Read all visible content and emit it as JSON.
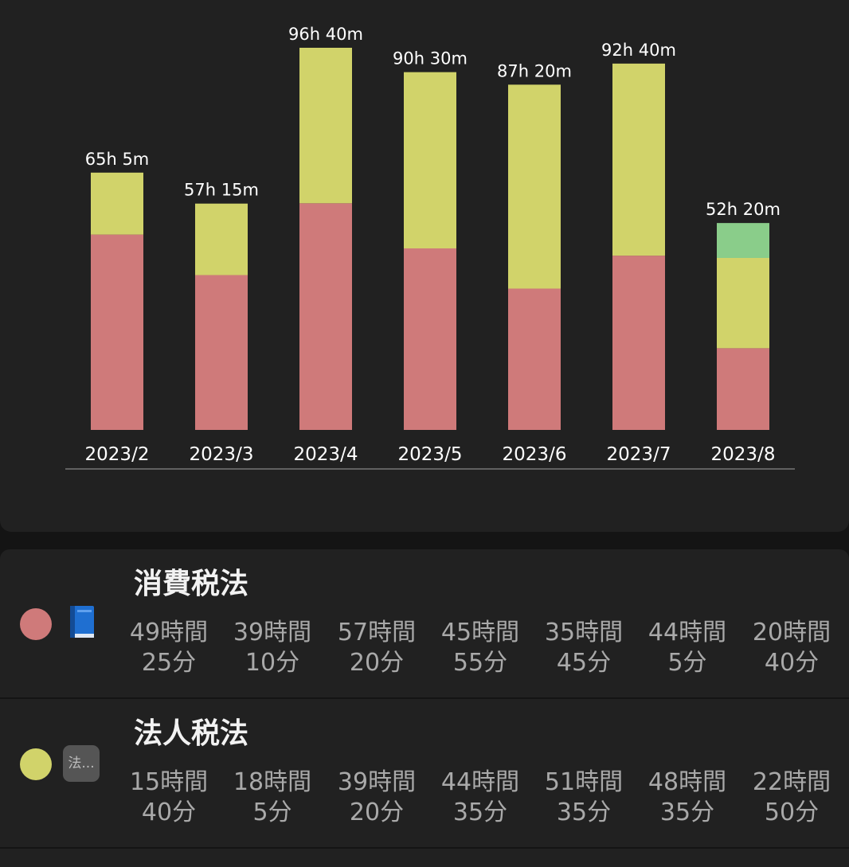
{
  "colors": {
    "subject_0": "#cf7a7a",
    "subject_1": "#d1d36a",
    "subject_2": "#8acd8a",
    "axis": "#777777",
    "label": "#ffffff"
  },
  "chart_data": {
    "type": "bar",
    "stacked": true,
    "categories": [
      "2023/2",
      "2023/3",
      "2023/4",
      "2023/5",
      "2023/6",
      "2023/7",
      "2023/8"
    ],
    "totals": [
      "65h  5m",
      "57h  15m",
      "96h  40m",
      "90h  30m",
      "87h  20m",
      "92h  40m",
      "52h  20m"
    ],
    "total_hours": [
      65.083,
      57.25,
      96.667,
      90.5,
      87.333,
      92.667,
      52.333
    ],
    "series": [
      {
        "name": "消費税法",
        "color": "#cf7a7a",
        "values": [
          49.417,
          39.167,
          57.333,
          45.917,
          35.75,
          44.083,
          20.667
        ]
      },
      {
        "name": "法人税法",
        "color": "#d1d36a",
        "values": [
          15.667,
          18.083,
          39.333,
          44.583,
          51.583,
          48.583,
          22.833
        ]
      },
      {
        "color": "#8acd8a",
        "values": [
          0,
          0,
          0,
          0,
          0,
          0,
          8.833
        ]
      }
    ],
    "ylim": [
      0,
      100
    ],
    "grid": false,
    "legend": "none"
  },
  "subjects": [
    {
      "name": "消費税法",
      "icon": "book-icon",
      "months": [
        {
          "h": "49時間",
          "m": "25分"
        },
        {
          "h": "39時間",
          "m": "10分"
        },
        {
          "h": "57時間",
          "m": "20分"
        },
        {
          "h": "45時間",
          "m": "55分"
        },
        {
          "h": "35時間",
          "m": "45分"
        },
        {
          "h": "44時間",
          "m": "5分"
        },
        {
          "h": "20時間",
          "m": "40分"
        }
      ]
    },
    {
      "name": "法人税法",
      "icon_text": "法...",
      "months": [
        {
          "h": "15時間",
          "m": "40分"
        },
        {
          "h": "18時間",
          "m": "5分"
        },
        {
          "h": "39時間",
          "m": "20分"
        },
        {
          "h": "44時間",
          "m": "35分"
        },
        {
          "h": "51時間",
          "m": "35分"
        },
        {
          "h": "48時間",
          "m": "35分"
        },
        {
          "h": "22時間",
          "m": "50分"
        }
      ]
    }
  ]
}
